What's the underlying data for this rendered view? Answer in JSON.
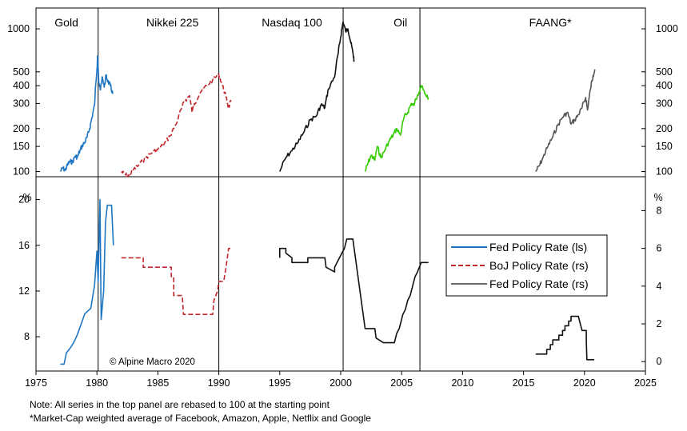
{
  "chart_data": {
    "type": "line",
    "notes": [
      "Note: All series in the top panel are rebased to 100 at the starting point",
      "*Market-Cap weighted average of Facebook, Amazon, Apple, Netflix and Google"
    ],
    "credit": "© Alpine Macro 2020",
    "x_ticks": [
      "1975",
      "1980",
      "1985",
      "1990",
      "1995",
      "2000",
      "2005",
      "2010",
      "2015",
      "2020",
      "2025"
    ],
    "x_tick_values": [
      1975,
      1980,
      1985,
      1990,
      1995,
      2000,
      2005,
      2010,
      2015,
      2020,
      2025
    ],
    "xlim": [
      1975,
      2025
    ],
    "event_lines_x": [
      1980.1,
      1990.0,
      2000.2,
      2006.5
    ],
    "top_panel": {
      "scale": "log",
      "ylim": [
        92,
        1400
      ],
      "y_ticks": [
        "100",
        "150",
        "200",
        "300",
        "400",
        "500",
        "1000"
      ],
      "y_tick_values": [
        100,
        150,
        200,
        300,
        400,
        500,
        1000
      ],
      "panel_labels": [
        {
          "text": "Gold",
          "x": 1977.5
        },
        {
          "text": "Nikkei 225",
          "x": 1986.2
        },
        {
          "text": "Nasdaq 100",
          "x": 1996.0
        },
        {
          "text": "Oil",
          "x": 2004.9
        },
        {
          "text": "FAANG*",
          "x": 2017.2
        }
      ],
      "series": [
        {
          "name": "Gold",
          "color": "#1f77c4",
          "dashed": false,
          "points": [
            [
              1977.0,
              100
            ],
            [
              1977.2,
              106
            ],
            [
              1977.4,
              102
            ],
            [
              1977.6,
              112
            ],
            [
              1977.8,
              118
            ],
            [
              1978.0,
              116
            ],
            [
              1978.2,
              128
            ],
            [
              1978.4,
              126
            ],
            [
              1978.6,
              140
            ],
            [
              1978.8,
              152
            ],
            [
              1979.0,
              160
            ],
            [
              1979.2,
              175
            ],
            [
              1979.4,
              200
            ],
            [
              1979.6,
              240
            ],
            [
              1979.8,
              290
            ],
            [
              1980.0,
              520
            ],
            [
              1980.05,
              650
            ],
            [
              1980.15,
              420
            ],
            [
              1980.3,
              380
            ],
            [
              1980.45,
              460
            ],
            [
              1980.6,
              390
            ],
            [
              1980.75,
              470
            ],
            [
              1980.9,
              430
            ],
            [
              1981.1,
              400
            ],
            [
              1981.3,
              350
            ]
          ]
        },
        {
          "name": "Nikkei 225",
          "color": "#c0272d",
          "dashed": true,
          "points": [
            [
              1982.0,
              100
            ],
            [
              1982.3,
              95
            ],
            [
              1982.6,
              93
            ],
            [
              1983.0,
              103
            ],
            [
              1983.5,
              112
            ],
            [
              1984.0,
              125
            ],
            [
              1984.5,
              135
            ],
            [
              1985.0,
              143
            ],
            [
              1985.5,
              155
            ],
            [
              1986.0,
              178
            ],
            [
              1986.5,
              215
            ],
            [
              1987.0,
              285
            ],
            [
              1987.3,
              320
            ],
            [
              1987.6,
              340
            ],
            [
              1987.8,
              260
            ],
            [
              1988.0,
              300
            ],
            [
              1988.5,
              360
            ],
            [
              1989.0,
              400
            ],
            [
              1989.5,
              440
            ],
            [
              1990.0,
              480
            ],
            [
              1990.3,
              400
            ],
            [
              1990.6,
              330
            ],
            [
              1990.8,
              280
            ],
            [
              1991.0,
              310
            ]
          ]
        },
        {
          "name": "Nasdaq 100",
          "color": "#111111",
          "dashed": false,
          "points": [
            [
              1995.0,
              100
            ],
            [
              1995.5,
              125
            ],
            [
              1996.0,
              140
            ],
            [
              1996.5,
              160
            ],
            [
              1997.0,
              190
            ],
            [
              1997.5,
              230
            ],
            [
              1998.0,
              245
            ],
            [
              1998.4,
              295
            ],
            [
              1998.7,
              280
            ],
            [
              1999.0,
              380
            ],
            [
              1999.5,
              460
            ],
            [
              1999.8,
              680
            ],
            [
              2000.0,
              880
            ],
            [
              2000.2,
              1120
            ],
            [
              2000.4,
              960
            ],
            [
              2000.6,
              1000
            ],
            [
              2000.8,
              820
            ],
            [
              2001.0,
              680
            ],
            [
              2001.1,
              600
            ]
          ]
        },
        {
          "name": "Oil",
          "color": "#33cc00",
          "dashed": false,
          "points": [
            [
              2002.0,
              100
            ],
            [
              2002.2,
              112
            ],
            [
              2002.5,
              130
            ],
            [
              2002.8,
              120
            ],
            [
              2003.0,
              150
            ],
            [
              2003.3,
              125
            ],
            [
              2003.6,
              140
            ],
            [
              2004.0,
              165
            ],
            [
              2004.3,
              180
            ],
            [
              2004.6,
              200
            ],
            [
              2004.9,
              180
            ],
            [
              2005.2,
              240
            ],
            [
              2005.5,
              260
            ],
            [
              2005.8,
              300
            ],
            [
              2006.0,
              290
            ],
            [
              2006.3,
              345
            ],
            [
              2006.6,
              400
            ],
            [
              2006.9,
              350
            ],
            [
              2007.2,
              330
            ]
          ]
        },
        {
          "name": "FAANG",
          "color": "#555555",
          "dashed": false,
          "points": [
            [
              2016.0,
              100
            ],
            [
              2016.3,
              110
            ],
            [
              2016.6,
              125
            ],
            [
              2017.0,
              150
            ],
            [
              2017.4,
              175
            ],
            [
              2017.8,
              210
            ],
            [
              2018.2,
              240
            ],
            [
              2018.6,
              260
            ],
            [
              2018.9,
              215
            ],
            [
              2019.2,
              230
            ],
            [
              2019.5,
              250
            ],
            [
              2019.8,
              280
            ],
            [
              2020.1,
              330
            ],
            [
              2020.25,
              270
            ],
            [
              2020.5,
              380
            ],
            [
              2020.7,
              470
            ],
            [
              2020.85,
              520
            ]
          ]
        }
      ]
    },
    "bottom_panel": {
      "left_axis": {
        "label": "%",
        "ylim": [
          5,
          22
        ],
        "ticks": [
          "8",
          "12",
          "16",
          "20"
        ],
        "tick_values": [
          8,
          12,
          16,
          20
        ]
      },
      "right_axis": {
        "label": "%",
        "ylim": [
          -0.5,
          9.8
        ],
        "ticks": [
          "0",
          "2",
          "4",
          "6",
          "8"
        ],
        "tick_values": [
          0,
          2,
          4,
          6,
          8
        ]
      },
      "series": [
        {
          "name": "Fed Policy Rate (ls)",
          "color": "#1f77c4",
          "dashed": false,
          "axis": "left",
          "points": [
            [
              1977.0,
              5.6
            ],
            [
              1977.3,
              5.6
            ],
            [
              1977.5,
              6.6
            ],
            [
              1977.8,
              7.0
            ],
            [
              1978.1,
              7.5
            ],
            [
              1978.4,
              8.2
            ],
            [
              1978.7,
              9.1
            ],
            [
              1979.0,
              10.0
            ],
            [
              1979.5,
              10.5
            ],
            [
              1979.8,
              12.5
            ],
            [
              1980.0,
              15.5
            ],
            [
              1980.1,
              12.8
            ],
            [
              1980.25,
              20.0
            ],
            [
              1980.35,
              9.5
            ],
            [
              1980.55,
              12.0
            ],
            [
              1980.7,
              18.0
            ],
            [
              1980.85,
              19.5
            ],
            [
              1981.2,
              19.5
            ],
            [
              1981.35,
              16.0
            ]
          ]
        },
        {
          "name": "BoJ Policy Rate (rs)",
          "color": "#c0272d",
          "dashed": true,
          "axis": "right",
          "points": [
            [
              1982.0,
              5.5
            ],
            [
              1983.8,
              5.5
            ],
            [
              1983.8,
              5.0
            ],
            [
              1986.1,
              5.0
            ],
            [
              1986.1,
              4.5
            ],
            [
              1986.3,
              4.5
            ],
            [
              1986.3,
              3.5
            ],
            [
              1987.0,
              3.5
            ],
            [
              1987.1,
              2.5
            ],
            [
              1989.5,
              2.5
            ],
            [
              1989.6,
              3.25
            ],
            [
              1989.9,
              3.75
            ],
            [
              1990.0,
              4.25
            ],
            [
              1990.4,
              4.25
            ],
            [
              1990.6,
              5.0
            ],
            [
              1990.8,
              6.0
            ],
            [
              1991.0,
              6.0
            ]
          ]
        },
        {
          "name": "Fed Policy Rate (rs)",
          "color": "#111111",
          "dashed": false,
          "axis": "right",
          "points": [
            [
              1995.0,
              5.5
            ],
            [
              1995.0,
              6.0
            ],
            [
              1995.5,
              6.0
            ],
            [
              1995.5,
              5.75
            ],
            [
              1996.0,
              5.5
            ],
            [
              1996.0,
              5.25
            ],
            [
              1997.3,
              5.25
            ],
            [
              1997.3,
              5.5
            ],
            [
              1998.7,
              5.5
            ],
            [
              1998.8,
              5.0
            ],
            [
              1999.5,
              4.75
            ],
            [
              1999.5,
              5.0
            ],
            [
              1999.7,
              5.25
            ],
            [
              1999.9,
              5.5
            ],
            [
              2000.1,
              5.75
            ],
            [
              2000.3,
              6.0
            ],
            [
              2000.5,
              6.5
            ],
            [
              2001.0,
              6.5
            ],
            [
              2002.0,
              1.75
            ],
            [
              2002.8,
              1.75
            ],
            [
              2002.9,
              1.25
            ],
            [
              2003.5,
              1.0
            ],
            [
              2004.4,
              1.0
            ],
            [
              2004.5,
              1.25
            ],
            [
              2004.6,
              1.5
            ],
            [
              2004.8,
              1.75
            ],
            [
              2004.9,
              2.0
            ],
            [
              2005.0,
              2.25
            ],
            [
              2005.1,
              2.5
            ],
            [
              2005.3,
              2.75
            ],
            [
              2005.4,
              3.0
            ],
            [
              2005.5,
              3.25
            ],
            [
              2005.7,
              3.5
            ],
            [
              2005.8,
              3.75
            ],
            [
              2005.9,
              4.0
            ],
            [
              2006.0,
              4.25
            ],
            [
              2006.1,
              4.5
            ],
            [
              2006.3,
              4.75
            ],
            [
              2006.45,
              5.0
            ],
            [
              2006.6,
              5.25
            ],
            [
              2007.2,
              5.25
            ],
            [
              2016.0,
              0.4
            ],
            [
              2016.9,
              0.4
            ],
            [
              2016.9,
              0.65
            ],
            [
              2017.2,
              0.65
            ],
            [
              2017.2,
              0.9
            ],
            [
              2017.4,
              0.9
            ],
            [
              2017.4,
              1.15
            ],
            [
              2017.9,
              1.15
            ],
            [
              2017.9,
              1.4
            ],
            [
              2018.2,
              1.4
            ],
            [
              2018.2,
              1.65
            ],
            [
              2018.4,
              1.65
            ],
            [
              2018.4,
              1.9
            ],
            [
              2018.7,
              1.9
            ],
            [
              2018.7,
              2.15
            ],
            [
              2018.9,
              2.15
            ],
            [
              2018.9,
              2.4
            ],
            [
              2019.5,
              2.4
            ],
            [
              2019.6,
              2.15
            ],
            [
              2019.7,
              1.9
            ],
            [
              2019.8,
              1.65
            ],
            [
              2020.15,
              1.65
            ],
            [
              2020.15,
              1.1
            ],
            [
              2020.2,
              0.1
            ],
            [
              2020.8,
              0.1
            ]
          ]
        }
      ],
      "legend": [
        {
          "label": "Fed Policy Rate (ls)",
          "color": "#1f77c4",
          "dashed": false
        },
        {
          "label": "BoJ Policy Rate (rs)",
          "color": "#c0272d",
          "dashed": true
        },
        {
          "label": "Fed Policy Rate (rs)",
          "color": "#111111",
          "dashed": false
        }
      ]
    }
  }
}
